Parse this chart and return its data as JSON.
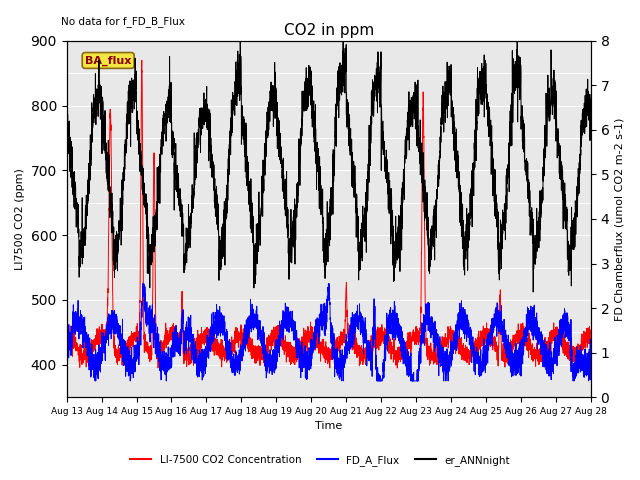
{
  "title": "CO2 in ppm",
  "ylabel_left": "LI7500 CO2 (ppm)",
  "ylabel_right": "FD Chamberflux (umol CO2 m-2 s-1)",
  "xlabel": "Time",
  "ylim_left": [
    350,
    900
  ],
  "ylim_right": [
    0.0,
    8.0
  ],
  "no_data_text": "No data for f_FD_B_Flux",
  "ba_flux_label": "BA_flux",
  "legend_entries": [
    "LI-7500 CO2 Concentration",
    "FD_A_Flux",
    "er_ANNnight"
  ],
  "legend_colors": [
    "red",
    "blue",
    "black"
  ],
  "x_tick_labels": [
    "Aug 13",
    "Aug 14",
    "Aug 15",
    "Aug 16",
    "Aug 17",
    "Aug 18",
    "Aug 19",
    "Aug 20",
    "Aug 21",
    "Aug 22",
    "Aug 23",
    "Aug 24",
    "Aug 25",
    "Aug 26",
    "Aug 27",
    "Aug 28"
  ],
  "n_points": 4320,
  "num_days": 15,
  "bg_color": "#e8e8e8",
  "grid_color": "#ffffff"
}
